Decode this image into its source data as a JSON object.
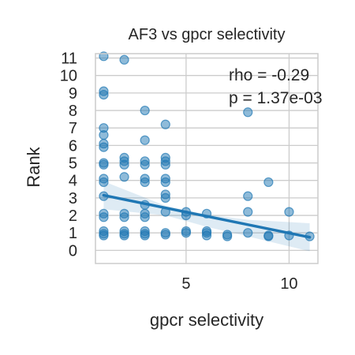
{
  "chart_data": {
    "type": "scatter",
    "title": "AF3 vs gpcr selectivity",
    "xlabel": "gpcr selectivity",
    "ylabel": "Rank",
    "xlim": [
      0.6,
      11.4
    ],
    "ylim": [
      -0.75,
      11.25
    ],
    "xticks": [
      5,
      10
    ],
    "yticks": [
      0,
      1,
      2,
      3,
      4,
      5,
      6,
      7,
      8,
      9,
      10,
      11
    ],
    "grid": true,
    "annotations": [
      "rho = -0.29",
      "p = 1.37e-03"
    ],
    "colors": {
      "points": "#1f77b4",
      "regression": "#1f77b4",
      "band": "#1f77b4"
    },
    "points": [
      [
        1,
        11.1
      ],
      [
        1,
        9.1
      ],
      [
        1,
        8.9
      ],
      [
        1,
        7.0
      ],
      [
        1,
        6.6
      ],
      [
        1,
        6.1
      ],
      [
        1,
        5.9
      ],
      [
        1,
        5.0
      ],
      [
        1,
        4.9
      ],
      [
        1,
        4.1
      ],
      [
        1,
        3.9
      ],
      [
        1,
        3.1
      ],
      [
        1,
        2.1
      ],
      [
        1,
        1.9
      ],
      [
        1,
        1.1
      ],
      [
        1,
        0.95
      ],
      [
        1,
        0.85
      ],
      [
        2,
        10.9
      ],
      [
        2,
        5.3
      ],
      [
        2,
        5.1
      ],
      [
        2,
        4.9
      ],
      [
        2,
        4.2
      ],
      [
        2,
        2.1
      ],
      [
        2,
        1.9
      ],
      [
        2,
        1.1
      ],
      [
        2,
        0.95
      ],
      [
        2,
        0.85
      ],
      [
        3,
        8.0
      ],
      [
        3,
        6.3
      ],
      [
        3,
        5.1
      ],
      [
        3,
        4.9
      ],
      [
        3,
        4.1
      ],
      [
        3,
        3.9
      ],
      [
        3,
        2.6
      ],
      [
        3,
        2.1
      ],
      [
        3,
        1.9
      ],
      [
        3,
        1.1
      ],
      [
        3,
        0.95
      ],
      [
        3,
        0.85
      ],
      [
        4,
        7.2
      ],
      [
        4,
        5.3
      ],
      [
        4,
        5.1
      ],
      [
        4,
        4.9
      ],
      [
        4,
        4.1
      ],
      [
        4,
        3.9
      ],
      [
        4,
        3.2
      ],
      [
        4,
        3.0
      ],
      [
        4,
        2.2
      ],
      [
        4,
        1.0
      ],
      [
        4,
        0.9
      ],
      [
        5,
        2.2
      ],
      [
        5,
        2.0
      ],
      [
        5,
        1.1
      ],
      [
        5,
        1.0
      ],
      [
        6,
        2.1
      ],
      [
        6,
        1.1
      ],
      [
        6,
        1.0
      ],
      [
        6,
        0.85
      ],
      [
        7,
        0.9
      ],
      [
        7,
        0.8
      ],
      [
        8,
        7.9
      ],
      [
        8,
        3.1
      ],
      [
        8,
        2.2
      ],
      [
        8,
        1.0
      ],
      [
        9,
        3.9
      ],
      [
        9,
        0.85
      ],
      [
        9,
        0.8
      ],
      [
        10,
        2.2
      ],
      [
        10,
        0.85
      ],
      [
        11,
        0.8
      ]
    ],
    "regression": {
      "x_start": 1,
      "x_end": 11,
      "y_start": 3.15,
      "y_end": 0.75
    },
    "ci_band": [
      {
        "x": 1,
        "lo": 2.35,
        "hi": 3.95
      },
      {
        "x": 4,
        "lo": 2.0,
        "hi": 2.55
      },
      {
        "x": 6,
        "lo": 1.35,
        "hi": 2.05
      },
      {
        "x": 8,
        "lo": 0.8,
        "hi": 1.75
      },
      {
        "x": 11,
        "lo": -0.05,
        "hi": 1.55
      }
    ]
  }
}
